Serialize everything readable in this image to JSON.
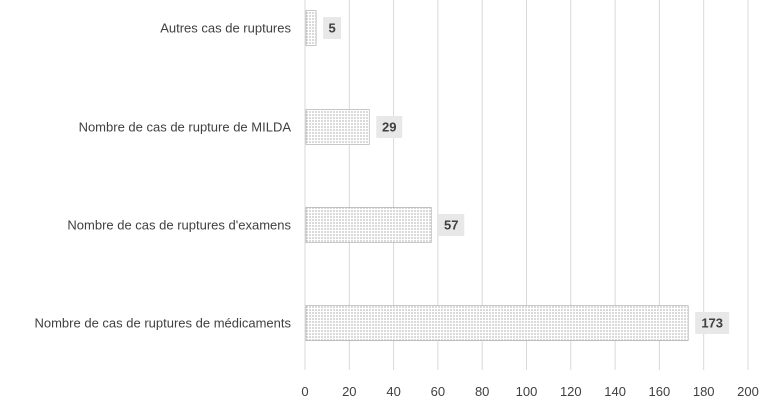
{
  "chart_data": {
    "type": "bar",
    "orientation": "horizontal",
    "categories": [
      "Autres cas de ruptures",
      "Nombre de cas de rupture de MILDA",
      "Nombre de cas de ruptures d'examens",
      "Nombre de cas de ruptures de médicaments"
    ],
    "values": [
      5,
      29,
      57,
      173
    ],
    "data_labels": [
      "5",
      "29",
      "57",
      "173"
    ],
    "xlim": [
      0,
      200
    ],
    "x_ticks": [
      "0",
      "20",
      "40",
      "60",
      "80",
      "100",
      "120",
      "140",
      "160",
      "180",
      "200"
    ],
    "title": "",
    "xlabel": "",
    "ylabel": "",
    "grid": true,
    "legend": "none",
    "bar_fill": "dotted-gray",
    "colors": {
      "bar_dots": "#8c8c8c",
      "bar_background": "#ffffff",
      "grid": "#d9d9d9",
      "text": "#404040",
      "data_label_background": "#e8e8e8"
    }
  }
}
